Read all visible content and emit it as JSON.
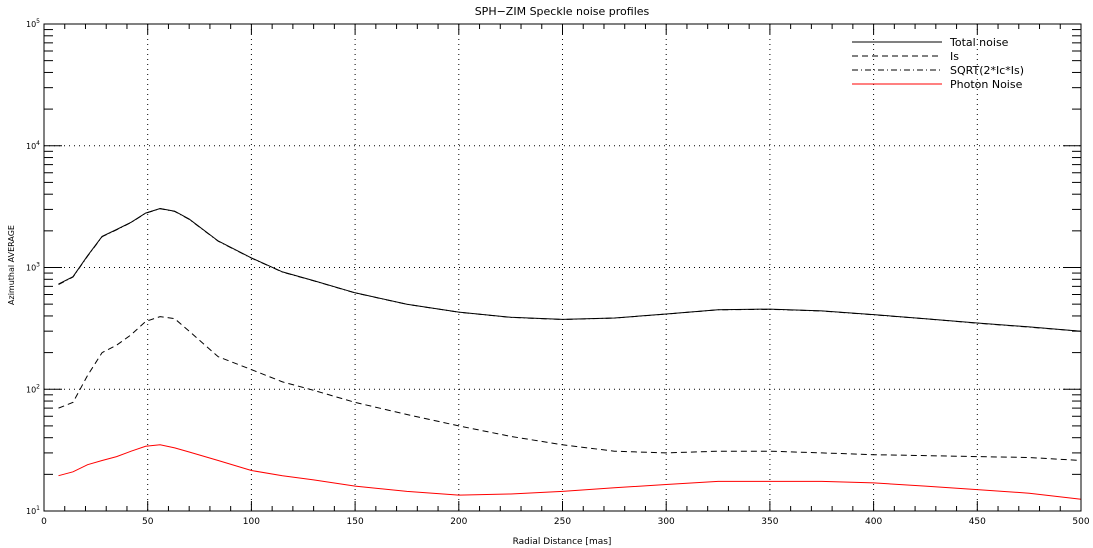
{
  "chart_data": {
    "type": "line",
    "title": "SPH−ZIM Speckle noise profiles",
    "xlabel": "Radial Distance [mas]",
    "ylabel": "Azimuthal AVERAGE",
    "xlim": [
      0,
      500
    ],
    "ylim": [
      10,
      100000
    ],
    "yscale": "log",
    "grid": true,
    "legend_position": "top-right",
    "x_ticks": [
      "0",
      "50",
      "100",
      "150",
      "200",
      "250",
      "300",
      "350",
      "400",
      "450",
      "500"
    ],
    "y_ticks": [
      {
        "base": "10",
        "exp": "1"
      },
      {
        "base": "10",
        "exp": "2"
      },
      {
        "base": "10",
        "exp": "3"
      },
      {
        "base": "10",
        "exp": "4"
      },
      {
        "base": "10",
        "exp": "5"
      }
    ],
    "series": [
      {
        "name": "Total noise",
        "style": "solid",
        "color": "#000000",
        "x": [
          7,
          14,
          21,
          28,
          35,
          42,
          49,
          56,
          63,
          70,
          84,
          100,
          115,
          130,
          150,
          175,
          200,
          225,
          250,
          275,
          300,
          325,
          350,
          375,
          400,
          425,
          450,
          475,
          500
        ],
        "y": [
          730,
          840,
          1250,
          1800,
          2050,
          2350,
          2800,
          3050,
          2900,
          2500,
          1650,
          1200,
          920,
          780,
          620,
          500,
          430,
          390,
          375,
          385,
          415,
          450,
          455,
          440,
          410,
          380,
          350,
          325,
          300
        ]
      },
      {
        "name": "Is",
        "style": "dashed",
        "color": "#000000",
        "x": [
          7,
          14,
          21,
          28,
          35,
          42,
          49,
          56,
          63,
          70,
          84,
          100,
          115,
          130,
          150,
          175,
          200,
          225,
          250,
          275,
          300,
          325,
          350,
          375,
          400,
          425,
          450,
          475,
          500
        ],
        "y": [
          70,
          78,
          130,
          200,
          230,
          280,
          360,
          395,
          380,
          300,
          185,
          145,
          115,
          98,
          78,
          62,
          50,
          41,
          35,
          31,
          30,
          31,
          31,
          30,
          29,
          28.5,
          28,
          27.5,
          26
        ]
      },
      {
        "name": "SQRT(2*Ic*Is)",
        "style": "dashdot",
        "color": "#000000",
        "x": [
          7,
          14,
          21,
          28,
          35,
          42,
          49,
          56,
          63,
          70,
          84,
          100,
          115,
          130,
          150,
          175,
          200,
          225,
          250,
          275,
          300,
          325,
          350,
          375,
          400,
          425,
          450,
          475,
          500
        ],
        "y": [
          725,
          835,
          1240,
          1790,
          2040,
          2340,
          2790,
          3040,
          2890,
          2490,
          1645,
          1195,
          917,
          778,
          619,
          499,
          429,
          389,
          374,
          384,
          414,
          449,
          454,
          439,
          409,
          379,
          349,
          324,
          299
        ]
      },
      {
        "name": "Photon Noise",
        "style": "solid",
        "color": "#ff0000",
        "x": [
          7,
          14,
          21,
          28,
          35,
          42,
          49,
          56,
          63,
          70,
          84,
          100,
          115,
          130,
          150,
          175,
          200,
          225,
          250,
          275,
          300,
          325,
          350,
          375,
          400,
          425,
          450,
          475,
          500
        ],
        "y": [
          19.5,
          21,
          24,
          26,
          28,
          31,
          34,
          35,
          33,
          30.5,
          26,
          21.5,
          19.5,
          18,
          16,
          14.5,
          13.5,
          13.8,
          14.5,
          15.5,
          16.5,
          17.5,
          17.5,
          17.5,
          17,
          16,
          15,
          14,
          12.5
        ]
      }
    ]
  },
  "colors": {
    "background": "#ffffff",
    "axes": "#000000",
    "photon": "#ff0000"
  }
}
